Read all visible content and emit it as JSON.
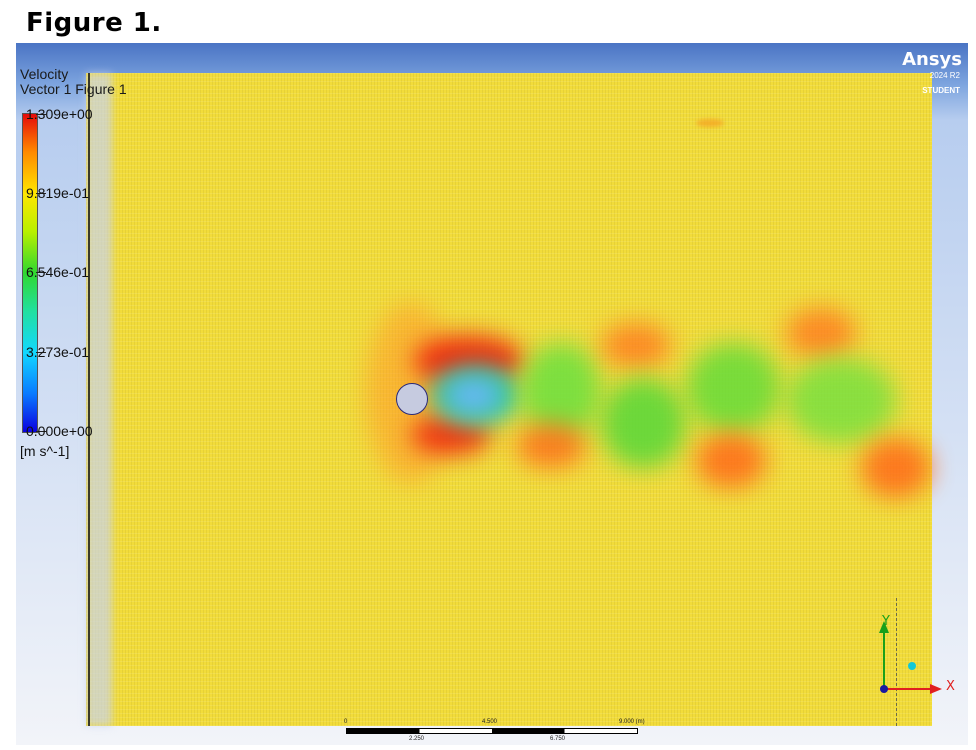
{
  "figure_title": "Figure 1.",
  "legend": {
    "title_line1": "Velocity",
    "title_line2": "Vector 1 Figure 1",
    "values": [
      "1.309e+00",
      "9.819e-01",
      "6.546e-01",
      "3.273e-01",
      "0.000e+00"
    ],
    "units": "[m s^-1]"
  },
  "logo": {
    "brand": "Ansys",
    "version": "2024 R2",
    "edition": "STUDENT"
  },
  "scale_bar": {
    "top_labels": [
      "0",
      "4.500",
      "9.000 (m)"
    ],
    "bottom_labels": [
      "2.250",
      "6.750"
    ]
  },
  "axes": {
    "y_label": "Y",
    "x_label": "X"
  },
  "colors": {
    "background_top": "#4a74c4",
    "background_bottom": "#f2f4f9",
    "field_base": "#f2dc3a",
    "high_velocity": "#e40a0a",
    "low_velocity": "#0a00e0",
    "y_axis": "#1aa01a",
    "x_axis": "#e02020",
    "z_axis": "#1a1aa0"
  }
}
